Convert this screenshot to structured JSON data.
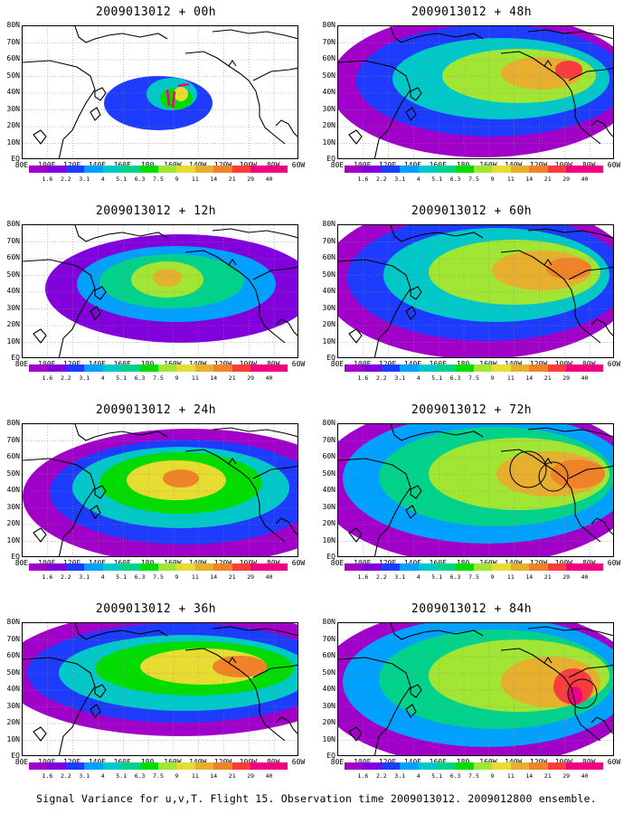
{
  "panels": [
    {
      "title": "2009013012 + 00h"
    },
    {
      "title": "2009013012 + 12h"
    },
    {
      "title": "2009013012 + 24h"
    },
    {
      "title": "2009013012 + 36h"
    },
    {
      "title": "2009013012 + 48h"
    },
    {
      "title": "2009013012 + 60h"
    },
    {
      "title": "2009013012 + 72h"
    },
    {
      "title": "2009013012 + 84h"
    }
  ],
  "y_labels": [
    "80N",
    "70N",
    "60N",
    "50N",
    "40N",
    "30N",
    "20N",
    "10N",
    "EQ"
  ],
  "x_labels": [
    "80E",
    "100E",
    "120E",
    "140E",
    "160E",
    "180",
    "160W",
    "140W",
    "120W",
    "100W",
    "80W",
    "60W"
  ],
  "colorbar": {
    "labels": [
      "1.6",
      "2.2",
      "3.1",
      "4",
      "5.1",
      "6.3",
      "7.5",
      "9",
      "11",
      "14",
      "21",
      "29",
      "40"
    ],
    "colors": [
      "#a000c8",
      "#8200dc",
      "#1e3cff",
      "#00a0ff",
      "#00c8c8",
      "#00d28c",
      "#00dc00",
      "#a0e632",
      "#e6dc32",
      "#e6af2d",
      "#f08228",
      "#fa3c3c",
      "#f00082"
    ]
  },
  "footer": "Signal Variance for u,v,T. Flight 15. Observation time 2009013012. 2009012800 ensemble."
}
